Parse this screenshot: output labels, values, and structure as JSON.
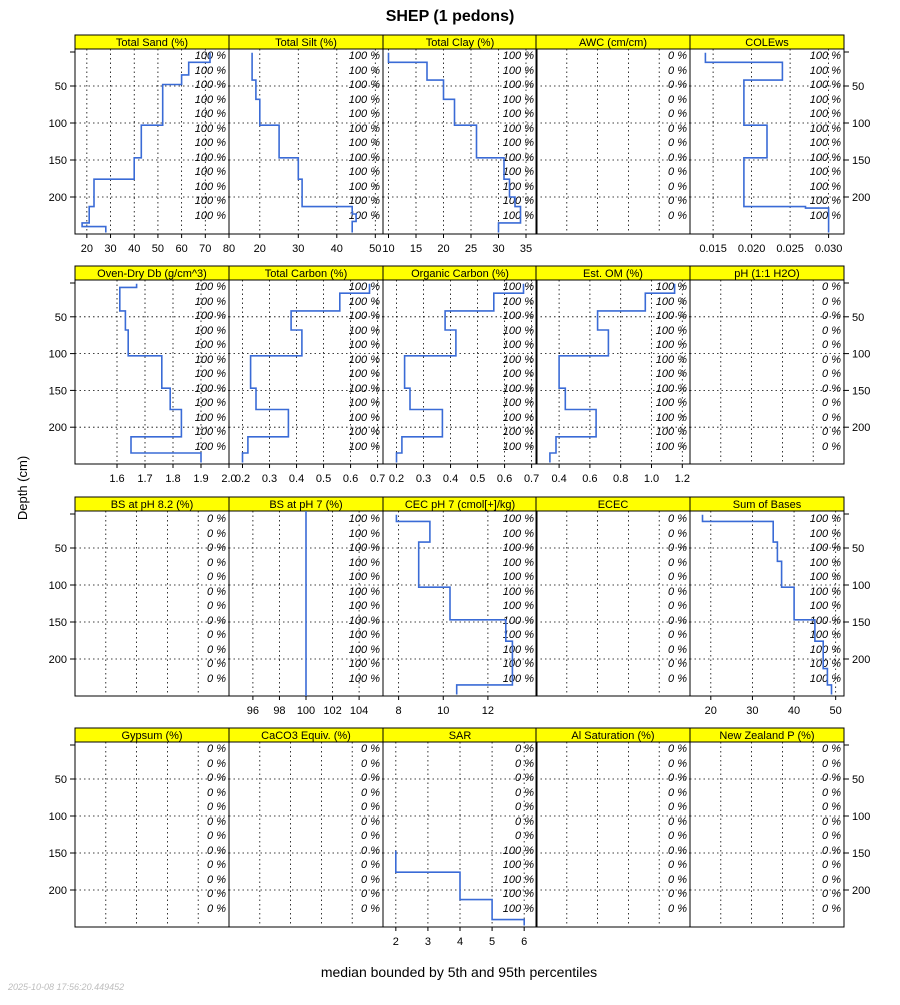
{
  "figure": {
    "title": "SHEP (1 pedons)",
    "ylabel": "Depth (cm)",
    "xlabel": "median bounded by 5th and 95th percentiles",
    "timestamp": "2025-10-08 17:56:20.449452",
    "colors": {
      "strip": "#ffff00",
      "line": "#3a6bd6",
      "grid": "#000000",
      "pct": "#000000"
    }
  },
  "chart_data": [
    {
      "type": "line",
      "title": "Total Sand (%)",
      "xlim": [
        15,
        80
      ],
      "ticks": [
        20,
        30,
        40,
        50,
        60,
        70,
        80
      ],
      "tick_labels": [
        "20",
        "30",
        "40",
        "50",
        "60",
        "70",
        "80"
      ],
      "ylim": [
        0,
        250
      ],
      "yticks": [
        50,
        100,
        150,
        200
      ],
      "x": [
        72,
        72,
        63,
        63,
        60,
        60,
        52,
        52,
        43,
        43,
        40,
        40,
        23,
        23,
        21,
        21,
        18,
        18,
        28,
        28
      ],
      "y": [
        5,
        18,
        18,
        35,
        35,
        48,
        48,
        103,
        103,
        147,
        147,
        176,
        176,
        213,
        213,
        235,
        235,
        240,
        240,
        248
      ],
      "pct_labels": [
        "100 %",
        "100 %",
        "100 %",
        "100 %",
        "100 %",
        "100 %",
        "100 %",
        "100 %",
        "100 %",
        "100 %",
        "100 %",
        "100 %"
      ]
    },
    {
      "type": "line",
      "title": "Total Silt (%)",
      "xlim": [
        12,
        52
      ],
      "ticks": [
        20,
        30,
        40,
        50
      ],
      "tick_labels": [
        "20",
        "30",
        "40",
        "50"
      ],
      "ylim": [
        0,
        250
      ],
      "yticks": [
        50,
        100,
        150,
        200
      ],
      "x": [
        18,
        18,
        19,
        19,
        20,
        20,
        25,
        25,
        30,
        30,
        31,
        31,
        44,
        44,
        45,
        45,
        44,
        44
      ],
      "y": [
        5,
        42,
        42,
        68,
        68,
        103,
        103,
        147,
        147,
        176,
        176,
        213,
        213,
        223,
        223,
        233,
        233,
        248
      ],
      "pct_labels": [
        "100 %",
        "100 %",
        "100 %",
        "100 %",
        "100 %",
        "100 %",
        "100 %",
        "100 %",
        "100 %",
        "100 %",
        "100 %",
        "100 %"
      ]
    },
    {
      "type": "line",
      "title": "Total Clay (%)",
      "xlim": [
        9,
        37
      ],
      "ticks": [
        10,
        15,
        20,
        25,
        30,
        35
      ],
      "tick_labels": [
        "10",
        "15",
        "20",
        "25",
        "30",
        "35"
      ],
      "ylim": [
        0,
        250
      ],
      "yticks": [
        50,
        100,
        150,
        200
      ],
      "x": [
        10,
        10,
        17,
        17,
        20,
        20,
        22,
        22,
        26,
        26,
        31,
        31,
        32,
        32,
        33,
        33,
        34,
        34,
        30,
        30
      ],
      "y": [
        5,
        18,
        18,
        42,
        42,
        68,
        68,
        103,
        103,
        147,
        147,
        176,
        176,
        200,
        200,
        213,
        213,
        235,
        235,
        248
      ],
      "pct_labels": [
        "100 %",
        "100 %",
        "100 %",
        "100 %",
        "100 %",
        "100 %",
        "100 %",
        "100 %",
        "100 %",
        "100 %",
        "100 %",
        "100 %"
      ]
    },
    {
      "type": "line",
      "title": "AWC (cm/cm)",
      "xlim": [
        0,
        1
      ],
      "ticks": [],
      "tick_labels": [],
      "ylim": [
        0,
        250
      ],
      "yticks": [
        50,
        100,
        150,
        200
      ],
      "x": [],
      "y": [],
      "pct_labels": [
        "0 %",
        "0 %",
        "0 %",
        "0 %",
        "0 %",
        "0 %",
        "0 %",
        "0 %",
        "0 %",
        "0 %",
        "0 %",
        "0 %"
      ]
    },
    {
      "type": "line",
      "title": "COLEws",
      "xlim": [
        0.012,
        0.032
      ],
      "ticks": [
        0.015,
        0.02,
        0.025,
        0.03
      ],
      "tick_labels": [
        "0.015",
        "0.020",
        "0.025",
        "0.030"
      ],
      "ylim": [
        0,
        250
      ],
      "yticks": [
        50,
        100,
        150,
        200
      ],
      "x": [
        0.014,
        0.014,
        0.024,
        0.024,
        0.019,
        0.019,
        0.022,
        0.022,
        0.019,
        0.019,
        0.027,
        0.027,
        0.03,
        0.03
      ],
      "y": [
        5,
        18,
        18,
        42,
        42,
        103,
        103,
        147,
        147,
        213,
        213,
        215,
        215,
        248
      ],
      "pct_labels": [
        "100 %",
        "100 %",
        "100 %",
        "100 %",
        "100 %",
        "100 %",
        "100 %",
        "100 %",
        "100 %",
        "100 %",
        "100 %",
        "100 %"
      ]
    },
    {
      "type": "line",
      "title": "Oven-Dry Db (g/cm^3)",
      "xlim": [
        1.45,
        2.0
      ],
      "ticks": [
        1.6,
        1.7,
        1.8,
        1.9,
        2.0
      ],
      "tick_labels": [
        "1.6",
        "1.7",
        "1.8",
        "1.9",
        "2.0"
      ],
      "ylim": [
        0,
        250
      ],
      "yticks": [
        50,
        100,
        150,
        200
      ],
      "x": [
        1.67,
        1.67,
        1.61,
        1.61,
        1.63,
        1.63,
        1.64,
        1.64,
        1.76,
        1.76,
        1.79,
        1.79,
        1.83,
        1.83,
        1.65,
        1.65,
        1.9,
        1.9
      ],
      "y": [
        5,
        10,
        10,
        42,
        42,
        68,
        68,
        103,
        103,
        147,
        147,
        176,
        176,
        213,
        213,
        235,
        235,
        248
      ],
      "pct_labels": [
        "100 %",
        "100 %",
        "100 %",
        "100 %",
        "100 %",
        "100 %",
        "100 %",
        "100 %",
        "100 %",
        "100 %",
        "100 %",
        "100 %"
      ]
    },
    {
      "type": "line",
      "title": "Total Carbon (%)",
      "xlim": [
        0.15,
        0.72
      ],
      "ticks": [
        0.2,
        0.3,
        0.4,
        0.5,
        0.6,
        0.7
      ],
      "tick_labels": [
        "0.2",
        "0.3",
        "0.4",
        "0.5",
        "0.6",
        "0.7"
      ],
      "ylim": [
        0,
        250
      ],
      "yticks": [
        50,
        100,
        150,
        200
      ],
      "x": [
        0.67,
        0.67,
        0.56,
        0.56,
        0.38,
        0.38,
        0.42,
        0.42,
        0.23,
        0.23,
        0.25,
        0.25,
        0.37,
        0.37,
        0.22,
        0.22,
        0.2,
        0.2
      ],
      "y": [
        5,
        18,
        18,
        42,
        42,
        68,
        68,
        103,
        103,
        147,
        147,
        176,
        176,
        213,
        213,
        235,
        235,
        248
      ],
      "pct_labels": [
        "100 %",
        "100 %",
        "100 %",
        "100 %",
        "100 %",
        "100 %",
        "100 %",
        "100 %",
        "100 %",
        "100 %",
        "100 %",
        "100 %"
      ]
    },
    {
      "type": "line",
      "title": "Organic Carbon (%)",
      "xlim": [
        0.15,
        0.72
      ],
      "ticks": [
        0.2,
        0.3,
        0.4,
        0.5,
        0.6,
        0.7
      ],
      "tick_labels": [
        "0.2",
        "0.3",
        "0.4",
        "0.5",
        "0.6",
        "0.7"
      ],
      "ylim": [
        0,
        250
      ],
      "yticks": [
        50,
        100,
        150,
        200
      ],
      "x": [
        0.67,
        0.67,
        0.56,
        0.56,
        0.38,
        0.38,
        0.42,
        0.42,
        0.23,
        0.23,
        0.25,
        0.25,
        0.37,
        0.37,
        0.22,
        0.22,
        0.2,
        0.2
      ],
      "y": [
        5,
        18,
        18,
        42,
        42,
        68,
        68,
        103,
        103,
        147,
        147,
        176,
        176,
        213,
        213,
        235,
        235,
        248
      ],
      "pct_labels": [
        "100 %",
        "100 %",
        "100 %",
        "100 %",
        "100 %",
        "100 %",
        "100 %",
        "100 %",
        "100 %",
        "100 %",
        "100 %",
        "100 %"
      ]
    },
    {
      "type": "line",
      "title": "Est. OM (%)",
      "xlim": [
        0.25,
        1.25
      ],
      "ticks": [
        0.4,
        0.6,
        0.8,
        1.0,
        1.2
      ],
      "tick_labels": [
        "0.4",
        "0.6",
        "0.8",
        "1.0",
        "1.2"
      ],
      "ylim": [
        0,
        250
      ],
      "yticks": [
        50,
        100,
        150,
        200
      ],
      "x": [
        1.15,
        1.15,
        0.96,
        0.96,
        0.65,
        0.65,
        0.72,
        0.72,
        0.4,
        0.4,
        0.44,
        0.44,
        0.64,
        0.64,
        0.38,
        0.38,
        0.34,
        0.34
      ],
      "y": [
        5,
        18,
        18,
        42,
        42,
        68,
        68,
        103,
        103,
        147,
        147,
        176,
        176,
        213,
        213,
        235,
        235,
        248
      ],
      "pct_labels": [
        "100 %",
        "100 %",
        "100 %",
        "100 %",
        "100 %",
        "100 %",
        "100 %",
        "100 %",
        "100 %",
        "100 %",
        "100 %",
        "100 %"
      ]
    },
    {
      "type": "line",
      "title": "pH (1:1 H2O)",
      "xlim": [
        0,
        1
      ],
      "ticks": [],
      "tick_labels": [],
      "ylim": [
        0,
        250
      ],
      "yticks": [
        50,
        100,
        150,
        200
      ],
      "x": [],
      "y": [],
      "pct_labels": [
        "0 %",
        "0 %",
        "0 %",
        "0 %",
        "0 %",
        "0 %",
        "0 %",
        "0 %",
        "0 %",
        "0 %",
        "0 %",
        "0 %"
      ]
    },
    {
      "type": "line",
      "title": "BS at pH 8.2 (%)",
      "xlim": [
        0,
        1
      ],
      "ticks": [],
      "tick_labels": [],
      "ylim": [
        0,
        250
      ],
      "yticks": [
        50,
        100,
        150,
        200
      ],
      "x": [],
      "y": [],
      "pct_labels": [
        "0 %",
        "0 %",
        "0 %",
        "0 %",
        "0 %",
        "0 %",
        "0 %",
        "0 %",
        "0 %",
        "0 %",
        "0 %",
        "0 %"
      ]
    },
    {
      "type": "line",
      "title": "BS at pH 7 (%)",
      "xlim": [
        94.2,
        105.8
      ],
      "ticks": [
        96,
        98,
        100,
        102,
        104
      ],
      "tick_labels": [
        "96",
        "98",
        "100",
        "102",
        "104"
      ],
      "ylim": [
        0,
        250
      ],
      "yticks": [
        50,
        100,
        150,
        200
      ],
      "x": [
        100,
        100
      ],
      "y": [
        0,
        250
      ],
      "pct_labels": [
        "100 %",
        "100 %",
        "100 %",
        "100 %",
        "100 %",
        "100 %",
        "100 %",
        "100 %",
        "100 %",
        "100 %",
        "100 %",
        "100 %"
      ]
    },
    {
      "type": "line",
      "title": "CEC pH 7 (cmol[+]/kg)",
      "xlim": [
        7.3,
        14.2
      ],
      "ticks": [
        8,
        10,
        12
      ],
      "tick_labels": [
        "8",
        "10",
        "12"
      ],
      "ylim": [
        0,
        250
      ],
      "yticks": [
        50,
        100,
        150,
        200
      ],
      "x": [
        7.9,
        7.9,
        9.4,
        9.4,
        8.9,
        8.9,
        10.3,
        10.3,
        12.8,
        12.8,
        13.1,
        13.1,
        10.6,
        10.6
      ],
      "y": [
        5,
        14,
        14,
        42,
        42,
        103,
        103,
        147,
        147,
        176,
        176,
        235,
        235,
        248
      ],
      "pct_labels": [
        "100 %",
        "100 %",
        "100 %",
        "100 %",
        "100 %",
        "100 %",
        "100 %",
        "100 %",
        "100 %",
        "100 %",
        "100 %",
        "100 %"
      ]
    },
    {
      "type": "line",
      "title": "ECEC",
      "xlim": [
        0,
        1
      ],
      "ticks": [],
      "tick_labels": [],
      "ylim": [
        0,
        250
      ],
      "yticks": [
        50,
        100,
        150,
        200
      ],
      "x": [],
      "y": [],
      "pct_labels": [
        "0 %",
        "0 %",
        "0 %",
        "0 %",
        "0 %",
        "0 %",
        "0 %",
        "0 %",
        "0 %",
        "0 %",
        "0 %",
        "0 %"
      ]
    },
    {
      "type": "line",
      "title": "Sum of Bases",
      "xlim": [
        15,
        52
      ],
      "ticks": [
        20,
        30,
        40,
        50
      ],
      "tick_labels": [
        "20",
        "30",
        "40",
        "50"
      ],
      "ylim": [
        0,
        250
      ],
      "yticks": [
        50,
        100,
        150,
        200
      ],
      "x": [
        18,
        18,
        35,
        35,
        36,
        36,
        37,
        37,
        40,
        40,
        45,
        45,
        47,
        47,
        48,
        48,
        49,
        49
      ],
      "y": [
        5,
        14,
        14,
        42,
        42,
        68,
        68,
        103,
        103,
        147,
        147,
        176,
        176,
        213,
        213,
        235,
        235,
        248
      ],
      "pct_labels": [
        "100 %",
        "100 %",
        "100 %",
        "100 %",
        "100 %",
        "100 %",
        "100 %",
        "100 %",
        "100 %",
        "100 %",
        "100 %",
        "100 %"
      ]
    },
    {
      "type": "line",
      "title": "Gypsum (%)",
      "xlim": [
        0,
        1
      ],
      "ticks": [],
      "tick_labels": [],
      "ylim": [
        0,
        250
      ],
      "yticks": [
        50,
        100,
        150,
        200
      ],
      "x": [],
      "y": [],
      "pct_labels": [
        "0 %",
        "0 %",
        "0 %",
        "0 %",
        "0 %",
        "0 %",
        "0 %",
        "0 %",
        "0 %",
        "0 %",
        "0 %",
        "0 %"
      ]
    },
    {
      "type": "line",
      "title": "CaCO3 Equiv. (%)",
      "xlim": [
        0,
        1
      ],
      "ticks": [],
      "tick_labels": [],
      "ylim": [
        0,
        250
      ],
      "yticks": [
        50,
        100,
        150,
        200
      ],
      "x": [],
      "y": [],
      "pct_labels": [
        "0 %",
        "0 %",
        "0 %",
        "0 %",
        "0 %",
        "0 %",
        "0 %",
        "0 %",
        "0 %",
        "0 %",
        "0 %",
        "0 %"
      ]
    },
    {
      "type": "line",
      "title": "SAR",
      "xlim": [
        1.6,
        6.4
      ],
      "ticks": [
        2,
        3,
        4,
        5,
        6
      ],
      "tick_labels": [
        "2",
        "3",
        "4",
        "5",
        "6"
      ],
      "ylim": [
        0,
        250
      ],
      "yticks": [
        50,
        100,
        150,
        200
      ],
      "x": [
        2,
        2,
        4,
        4,
        5,
        5,
        6,
        6
      ],
      "y": [
        147,
        176,
        176,
        213,
        213,
        240,
        240,
        248
      ],
      "pct_labels": [
        "0 %",
        "0 %",
        "0 %",
        "0 %",
        "0 %",
        "0 %",
        "0 %",
        "100 %",
        "100 %",
        "100 %",
        "100 %",
        "100 %"
      ]
    },
    {
      "type": "line",
      "title": "Al Saturation (%)",
      "xlim": [
        0,
        1
      ],
      "ticks": [],
      "tick_labels": [],
      "ylim": [
        0,
        250
      ],
      "yticks": [
        50,
        100,
        150,
        200
      ],
      "x": [],
      "y": [],
      "pct_labels": [
        "0 %",
        "0 %",
        "0 %",
        "0 %",
        "0 %",
        "0 %",
        "0 %",
        "0 %",
        "0 %",
        "0 %",
        "0 %",
        "0 %"
      ]
    },
    {
      "type": "line",
      "title": "New Zealand P (%)",
      "xlim": [
        0,
        1
      ],
      "ticks": [],
      "tick_labels": [],
      "ylim": [
        0,
        250
      ],
      "yticks": [
        50,
        100,
        150,
        200
      ],
      "x": [],
      "y": [],
      "pct_labels": [
        "0 %",
        "0 %",
        "0 %",
        "0 %",
        "0 %",
        "0 %",
        "0 %",
        "0 %",
        "0 %",
        "0 %",
        "0 %",
        "0 %"
      ]
    }
  ]
}
